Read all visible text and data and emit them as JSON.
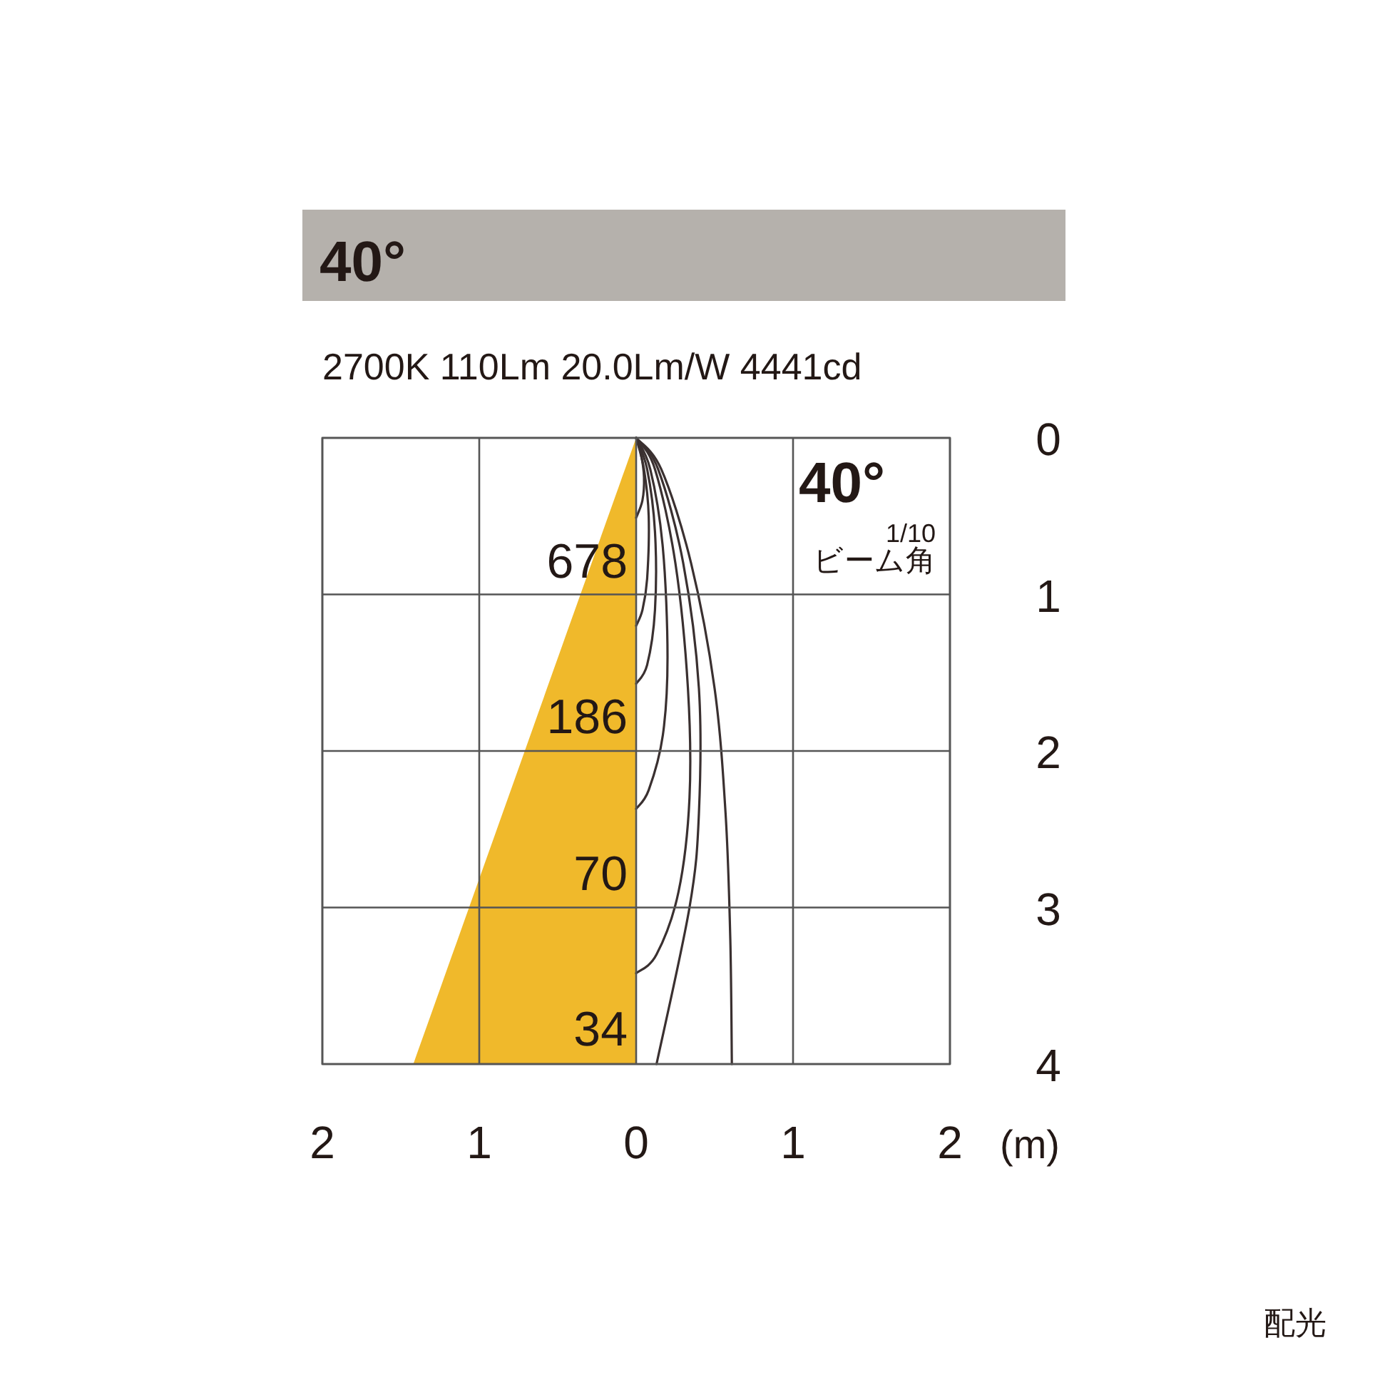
{
  "chart_data": {
    "type": "line",
    "title": "40°",
    "subtitle": "2700K 110Lm 20.0Lm/W 4441cd",
    "xlabel": "(m)",
    "xlim": [
      -2,
      2
    ],
    "ylim": [
      4,
      0
    ],
    "xticks": [
      {
        "value": -2,
        "label": "2"
      },
      {
        "value": -1,
        "label": "1"
      },
      0,
      1,
      2
    ],
    "yticks": [
      0,
      1,
      2,
      3,
      4
    ],
    "grid": true,
    "series": [
      {
        "type": "area",
        "color": "#f0b92b",
        "x": [
          -1.42,
          0
        ],
        "values": [
          4,
          0
        ]
      },
      {
        "type": "line",
        "color": "#3a3030",
        "x": [
          0,
          0.03,
          0.05,
          0.04,
          0
        ],
        "values": [
          0,
          0.1,
          0.25,
          0.4,
          0.51
        ]
      },
      {
        "type": "line",
        "color": "#3a3030",
        "x": [
          0,
          0.05,
          0.08,
          0.07,
          0.04,
          0
        ],
        "values": [
          0,
          0.2,
          0.5,
          0.9,
          1.1,
          1.2
        ]
      },
      {
        "type": "line",
        "color": "#3a3030",
        "x": [
          0,
          0.07,
          0.12,
          0.12,
          0.07,
          0
        ],
        "values": [
          0,
          0.2,
          0.6,
          1.1,
          1.45,
          1.57
        ]
      },
      {
        "type": "line",
        "color": "#3a3030",
        "x": [
          0,
          0.09,
          0.17,
          0.2,
          0.17,
          0.08,
          0
        ],
        "values": [
          0,
          0.2,
          0.7,
          1.4,
          1.9,
          2.25,
          2.37
        ]
      },
      {
        "type": "line",
        "color": "#3a3030",
        "x": [
          0,
          0.12,
          0.25,
          0.33,
          0.34,
          0.27,
          0.13,
          0
        ],
        "values": [
          0,
          0.2,
          0.8,
          1.6,
          2.3,
          2.9,
          3.3,
          3.42
        ]
      },
      {
        "type": "line",
        "color": "#3a3030",
        "x": [
          0,
          0.14,
          0.3,
          0.4,
          0.4,
          0.34,
          0.13
        ],
        "values": [
          0,
          0.2,
          0.8,
          1.6,
          2.4,
          3.0,
          4
        ]
      },
      {
        "type": "line",
        "color": "#3a3030",
        "x": [
          0,
          0.16,
          0.35,
          0.5,
          0.57,
          0.6,
          0.61
        ],
        "values": [
          0,
          0.2,
          0.8,
          1.6,
          2.4,
          3.2,
          4
        ]
      }
    ],
    "annotations": [
      "678",
      "186",
      "70",
      "34",
      "40°",
      "1/10",
      "ビーム角",
      "配光"
    ]
  }
}
